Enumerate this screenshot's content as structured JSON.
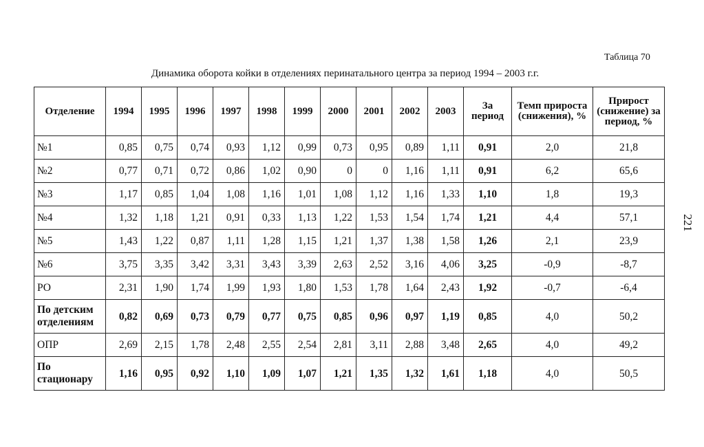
{
  "header": {
    "table_label": "Таблица 70",
    "caption": "Динамика оборота койки в отделениях перинатального центра за период 1994 – 2003 г.г.",
    "page_number": "221"
  },
  "table": {
    "columns": [
      "Отделение",
      "1994",
      "1995",
      "1996",
      "1997",
      "1998",
      "1999",
      "2000",
      "2001",
      "2002",
      "2003",
      "За период",
      "Темп прироста (снижения), %",
      "Прирост (снижение) за период, %"
    ],
    "rows": [
      {
        "bold": false,
        "name": "№1",
        "years": [
          "0,85",
          "0,75",
          "0,74",
          "0,93",
          "1,12",
          "0,99",
          "0,73",
          "0,95",
          "0,89",
          "1,11"
        ],
        "period": "0,91",
        "rate": "2,0",
        "increase": "21,8"
      },
      {
        "bold": false,
        "name": "№2",
        "years": [
          "0,77",
          "0,71",
          "0,72",
          "0,86",
          "1,02",
          "0,90",
          "0",
          "0",
          "1,16",
          "1,11"
        ],
        "period": "0,91",
        "rate": "6,2",
        "increase": "65,6"
      },
      {
        "bold": false,
        "name": "№3",
        "years": [
          "1,17",
          "0,85",
          "1,04",
          "1,08",
          "1,16",
          "1,01",
          "1,08",
          "1,12",
          "1,16",
          "1,33"
        ],
        "period": "1,10",
        "rate": "1,8",
        "increase": "19,3"
      },
      {
        "bold": false,
        "name": "№4",
        "years": [
          "1,32",
          "1,18",
          "1,21",
          "0,91",
          "0,33",
          "1,13",
          "1,22",
          "1,53",
          "1,54",
          "1,74"
        ],
        "period": "1,21",
        "rate": "4,4",
        "increase": "57,1"
      },
      {
        "bold": false,
        "name": "№5",
        "years": [
          "1,43",
          "1,22",
          "0,87",
          "1,11",
          "1,28",
          "1,15",
          "1,21",
          "1,37",
          "1,38",
          "1,58"
        ],
        "period": "1,26",
        "rate": "2,1",
        "increase": "23,9"
      },
      {
        "bold": false,
        "name": "№6",
        "years": [
          "3,75",
          "3,35",
          "3,42",
          "3,31",
          "3,43",
          "3,39",
          "2,63",
          "2,52",
          "3,16",
          "4,06"
        ],
        "period": "3,25",
        "rate": "-0,9",
        "increase": "-8,7"
      },
      {
        "bold": false,
        "name": "РО",
        "years": [
          "2,31",
          "1,90",
          "1,74",
          "1,99",
          "1,93",
          "1,80",
          "1,53",
          "1,78",
          "1,64",
          "2,43"
        ],
        "period": "1,92",
        "rate": "-0,7",
        "increase": "-6,4"
      },
      {
        "bold": true,
        "name": "По детским отделениям",
        "years": [
          "0,82",
          "0,69",
          "0,73",
          "0,79",
          "0,77",
          "0,75",
          "0,85",
          "0,96",
          "0,97",
          "1,19"
        ],
        "period": "0,85",
        "rate": "4,0",
        "increase": "50,2"
      },
      {
        "bold": false,
        "name": "ОПР",
        "years": [
          "2,69",
          "2,15",
          "1,78",
          "2,48",
          "2,55",
          "2,54",
          "2,81",
          "3,11",
          "2,88",
          "3,48"
        ],
        "period": "2,65",
        "rate": "4,0",
        "increase": "49,2"
      },
      {
        "bold": true,
        "name": "По стационару",
        "years": [
          "1,16",
          "0,95",
          "0,92",
          "1,10",
          "1,09",
          "1,07",
          "1,21",
          "1,35",
          "1,32",
          "1,61"
        ],
        "period": "1,18",
        "rate": "4,0",
        "increase": "50,5"
      }
    ]
  }
}
